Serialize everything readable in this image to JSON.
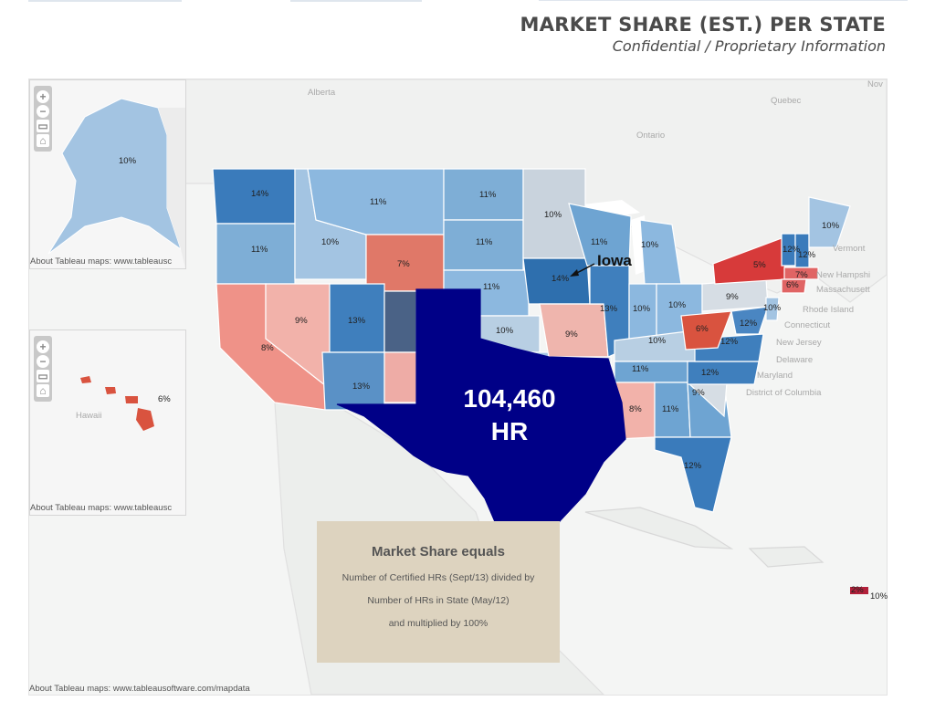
{
  "header": {
    "title": "MARKET SHARE (EST.) PER STATE",
    "subtitle": "Confidential / Proprietary Information"
  },
  "colors": {
    "low_share": "#d9383a",
    "mid_share": "#f0b0a8",
    "neutral": "#d4dbe2",
    "high_share": "#2e6fae",
    "texas_highlight": "#000087"
  },
  "map": {
    "attribution": "About Tableau maps: www.tableausoftware.com/mapdata",
    "attribution_cropped": "About Tableau maps: www.tableausc",
    "zoom_controls": [
      "zoom-in",
      "zoom-out",
      "select",
      "home"
    ],
    "geo_labels": [
      "Alberta",
      "Ontario",
      "Quebec",
      "Nov",
      "Vermont",
      "New Hampshi",
      "Massachusett",
      "Rhode Island",
      "Connecticut",
      "New Jersey",
      "Delaware",
      "Maryland",
      "District of Columbia",
      "Hawaii"
    ],
    "state_shares": [
      {
        "state": "Alaska",
        "label": "10%"
      },
      {
        "state": "Hawaii",
        "label": "6%"
      },
      {
        "state": "Washington",
        "label": "14%"
      },
      {
        "state": "Oregon",
        "label": "11%"
      },
      {
        "state": "Idaho",
        "label": "10%"
      },
      {
        "state": "Montana",
        "label": "11%"
      },
      {
        "state": "Wyoming",
        "label": "7%"
      },
      {
        "state": "California",
        "label": "8%"
      },
      {
        "state": "Nevada",
        "label": "9%"
      },
      {
        "state": "Utah",
        "label": "13%"
      },
      {
        "state": "Arizona",
        "label": "13%"
      },
      {
        "state": "North Dakota",
        "label": "11%"
      },
      {
        "state": "South Dakota",
        "label": "11%"
      },
      {
        "state": "Nebraska",
        "label": "11%"
      },
      {
        "state": "Kansas",
        "label": "10%"
      },
      {
        "state": "Minnesota",
        "label": "10%"
      },
      {
        "state": "Iowa",
        "label": "14%"
      },
      {
        "state": "Missouri",
        "label": "9%"
      },
      {
        "state": "Wisconsin",
        "label": "11%"
      },
      {
        "state": "Michigan",
        "label": "10%"
      },
      {
        "state": "Illinois",
        "label": "13%"
      },
      {
        "state": "Indiana",
        "label": "10%"
      },
      {
        "state": "Ohio",
        "label": "10%"
      },
      {
        "state": "Kentucky",
        "label": "10%"
      },
      {
        "state": "Tennessee",
        "label": "11%"
      },
      {
        "state": "Mississippi",
        "label": "8%"
      },
      {
        "state": "Alabama",
        "label": "11%"
      },
      {
        "state": "Florida",
        "label": "12%"
      },
      {
        "state": "South Carolina",
        "label": "9%"
      },
      {
        "state": "North Carolina",
        "label": "12%"
      },
      {
        "state": "Virginia",
        "label": "12%"
      },
      {
        "state": "West Virginia",
        "label": "6%"
      },
      {
        "state": "Pennsylvania",
        "label": "9%"
      },
      {
        "state": "Maryland",
        "label": "12%"
      },
      {
        "state": "New Jersey",
        "label": "10%"
      },
      {
        "state": "New York",
        "label": "5%"
      },
      {
        "state": "Vermont",
        "label": "12%"
      },
      {
        "state": "New Hampshire",
        "label": "12%"
      },
      {
        "state": "Massachusetts",
        "label": "7%"
      },
      {
        "state": "Connecticut",
        "label": "6%"
      },
      {
        "state": "Maine",
        "label": "10%"
      },
      {
        "state": "Puerto Rico",
        "label": "2%"
      },
      {
        "state": "Virgin Islands",
        "label": "10%"
      }
    ],
    "callout": {
      "label": "Iowa"
    },
    "highlight": {
      "state": "Texas",
      "value": "104,460",
      "unit": "HR"
    }
  },
  "infobox": {
    "heading": "Market Share equals",
    "line1": "Number of Certified HRs (Sept/13) divided by",
    "line2": "Number of HRs in State (May/12)",
    "line3": "and multiplied by 100%"
  }
}
